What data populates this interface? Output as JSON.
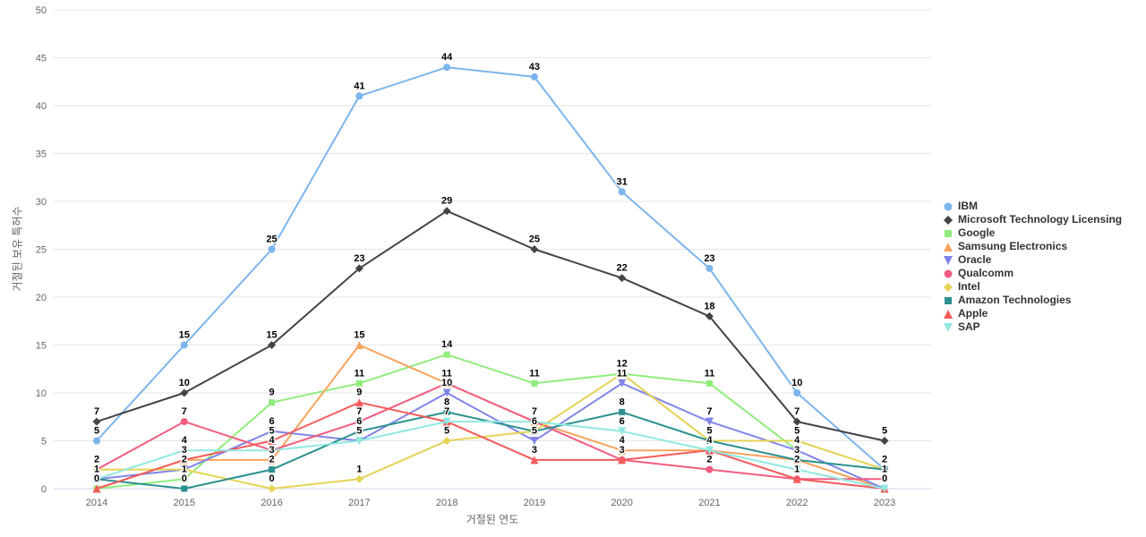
{
  "chart_data": {
    "type": "line",
    "title": "",
    "xlabel": "거절된 연도",
    "ylabel": "거절된 보유 특허수",
    "ylim": [
      0,
      50
    ],
    "ytick_step": 5,
    "yticks": [
      0,
      5,
      10,
      15,
      20,
      25,
      30,
      35,
      40,
      45,
      50
    ],
    "grid": "horizontal",
    "legend_position": "right",
    "categories": [
      "2014",
      "2015",
      "2016",
      "2017",
      "2018",
      "2019",
      "2020",
      "2021",
      "2022",
      "2023"
    ],
    "series": [
      {
        "name": "IBM",
        "color": "#7cb5ec",
        "marker": "circle",
        "values": [
          5,
          15,
          25,
          41,
          44,
          43,
          31,
          23,
          10,
          2
        ]
      },
      {
        "name": "Microsoft Technology Licensing",
        "color": "#434348",
        "marker": "diamond",
        "values": [
          7,
          10,
          15,
          23,
          29,
          25,
          22,
          18,
          7,
          5
        ]
      },
      {
        "name": "Google",
        "color": "#90ed7d",
        "marker": "square",
        "values": [
          0,
          1,
          9,
          11,
          14,
          11,
          12,
          11,
          4,
          null
        ]
      },
      {
        "name": "Samsung Electronics",
        "color": "#f7a35c",
        "marker": "triangle",
        "values": [
          0,
          3,
          3,
          15,
          11,
          7,
          4,
          4,
          3,
          0
        ]
      },
      {
        "name": "Oracle",
        "color": "#8085e9",
        "marker": "triangle-down",
        "values": [
          1,
          2,
          6,
          5,
          10,
          5,
          11,
          7,
          4,
          0
        ]
      },
      {
        "name": "Qualcomm",
        "color": "#f15c80",
        "marker": "circle",
        "values": [
          2,
          7,
          4,
          7,
          11,
          7,
          3,
          2,
          1,
          1
        ]
      },
      {
        "name": "Intel",
        "color": "#e4d354",
        "marker": "diamond",
        "values": [
          2,
          2,
          0,
          1,
          5,
          6,
          12,
          5,
          5,
          2
        ]
      },
      {
        "name": "Amazon Technologies",
        "color": "#2b908f",
        "marker": "square",
        "values": [
          1,
          0,
          2,
          6,
          8,
          6,
          8,
          5,
          3,
          2
        ]
      },
      {
        "name": "Apple",
        "color": "#f45b5b",
        "marker": "triangle",
        "values": [
          0,
          3,
          5,
          9,
          7,
          3,
          3,
          4,
          1,
          0
        ]
      },
      {
        "name": "SAP",
        "color": "#91e8e1",
        "marker": "triangle-down",
        "values": [
          1,
          4,
          4,
          5,
          7,
          7,
          6,
          4,
          2,
          0
        ]
      }
    ],
    "style": {
      "grid_color": "#e6e6e6",
      "axis_line_color": "#ccd6eb",
      "tick_label_color": "#666666",
      "data_label_color": "#000000",
      "legend_text_color": "#333333"
    }
  }
}
